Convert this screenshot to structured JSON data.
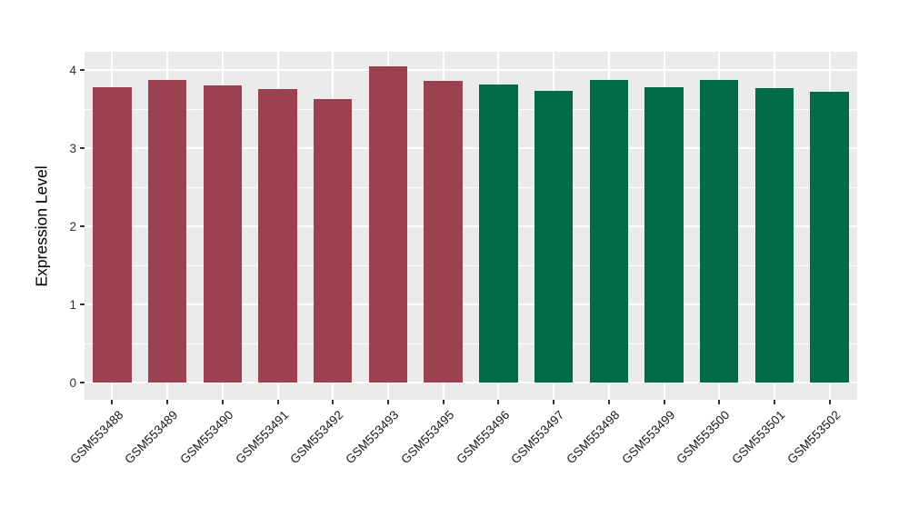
{
  "chart_data": {
    "type": "bar",
    "title": "",
    "xlabel": "",
    "ylabel": "Expression Level",
    "categories": [
      "GSM553488",
      "GSM553489",
      "GSM553490",
      "GSM553491",
      "GSM553492",
      "GSM553493",
      "GSM553495",
      "GSM553496",
      "GSM553497",
      "GSM553498",
      "GSM553499",
      "GSM553500",
      "GSM553501",
      "GSM553502"
    ],
    "values": [
      3.78,
      3.87,
      3.8,
      3.76,
      3.63,
      4.05,
      3.86,
      3.81,
      3.73,
      3.87,
      3.78,
      3.87,
      3.77,
      3.72
    ],
    "bar_groups": [
      "group1",
      "group1",
      "group1",
      "group1",
      "group1",
      "group1",
      "group1",
      "group2",
      "group2",
      "group2",
      "group2",
      "group2",
      "group2",
      "group2"
    ],
    "group_colors": {
      "group1": "#9B4150",
      "group2": "#006B47"
    },
    "yticks": [
      0,
      1,
      2,
      3,
      4
    ],
    "ytick_labels": [
      "0",
      "1",
      "2",
      "3",
      "4"
    ],
    "yticks_minor": [
      0.5,
      1.5,
      2.5,
      3.5
    ],
    "ylim": [
      -0.215,
      4.233
    ],
    "bar_width_fraction": 0.7,
    "x_label_angle_deg": 45,
    "legend": "none",
    "grid": "on",
    "panel_background": "#EBEBEB",
    "grid_color_major": "#FFFFFF",
    "grid_color_minor": "#FFFFFF",
    "axis_text_color": "#1A1A1A",
    "tick_color": "#333333"
  }
}
